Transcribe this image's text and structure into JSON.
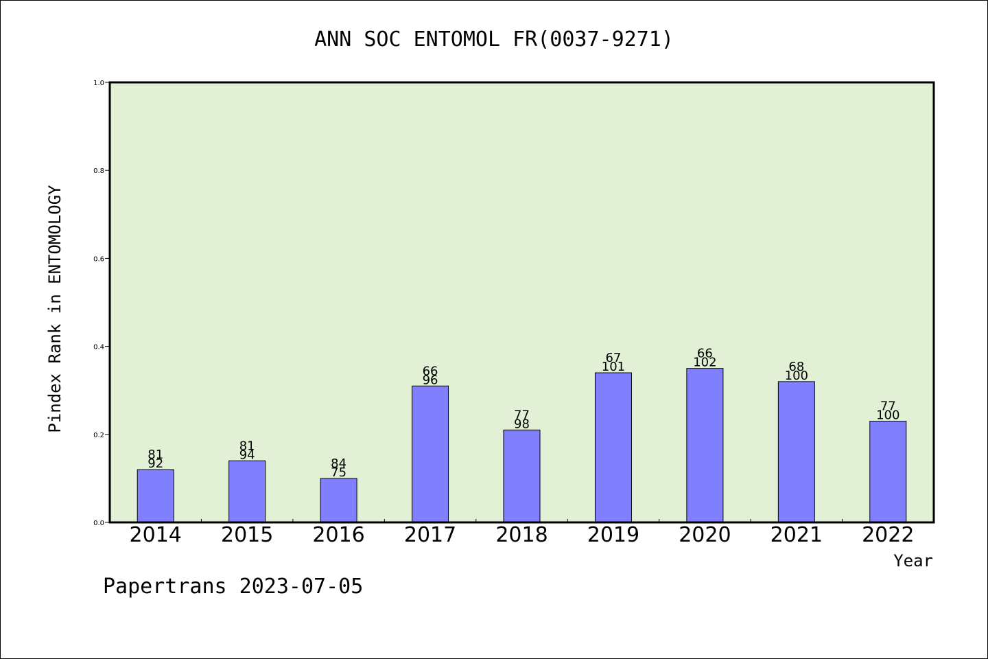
{
  "chart_data": {
    "type": "bar",
    "title": "ANN SOC ENTOMOL FR(0037-9271)",
    "xlabel": "Year",
    "ylabel": "Pindex Rank in ENTOMOLOGY",
    "ylim": [
      0,
      1.0
    ],
    "yticks": [
      "0.0",
      "0.2",
      "0.4",
      "0.6",
      "0.8",
      "1.0"
    ],
    "categories": [
      "2014",
      "2015",
      "2016",
      "2017",
      "2018",
      "2019",
      "2020",
      "2021",
      "2022"
    ],
    "values": [
      0.12,
      0.14,
      0.1,
      0.31,
      0.21,
      0.34,
      0.35,
      0.32,
      0.23
    ],
    "labels_top": [
      "81",
      "81",
      "84",
      "66",
      "77",
      "67",
      "66",
      "68",
      "77"
    ],
    "labels_bottom": [
      "92",
      "94",
      "75",
      "96",
      "98",
      "101",
      "102",
      "100",
      "100"
    ],
    "colors": {
      "plot_background": "#e2f0d6",
      "bar_fill": "#8080ff",
      "bar_stroke": "#000000"
    }
  },
  "footer": "Papertrans 2023-07-05"
}
